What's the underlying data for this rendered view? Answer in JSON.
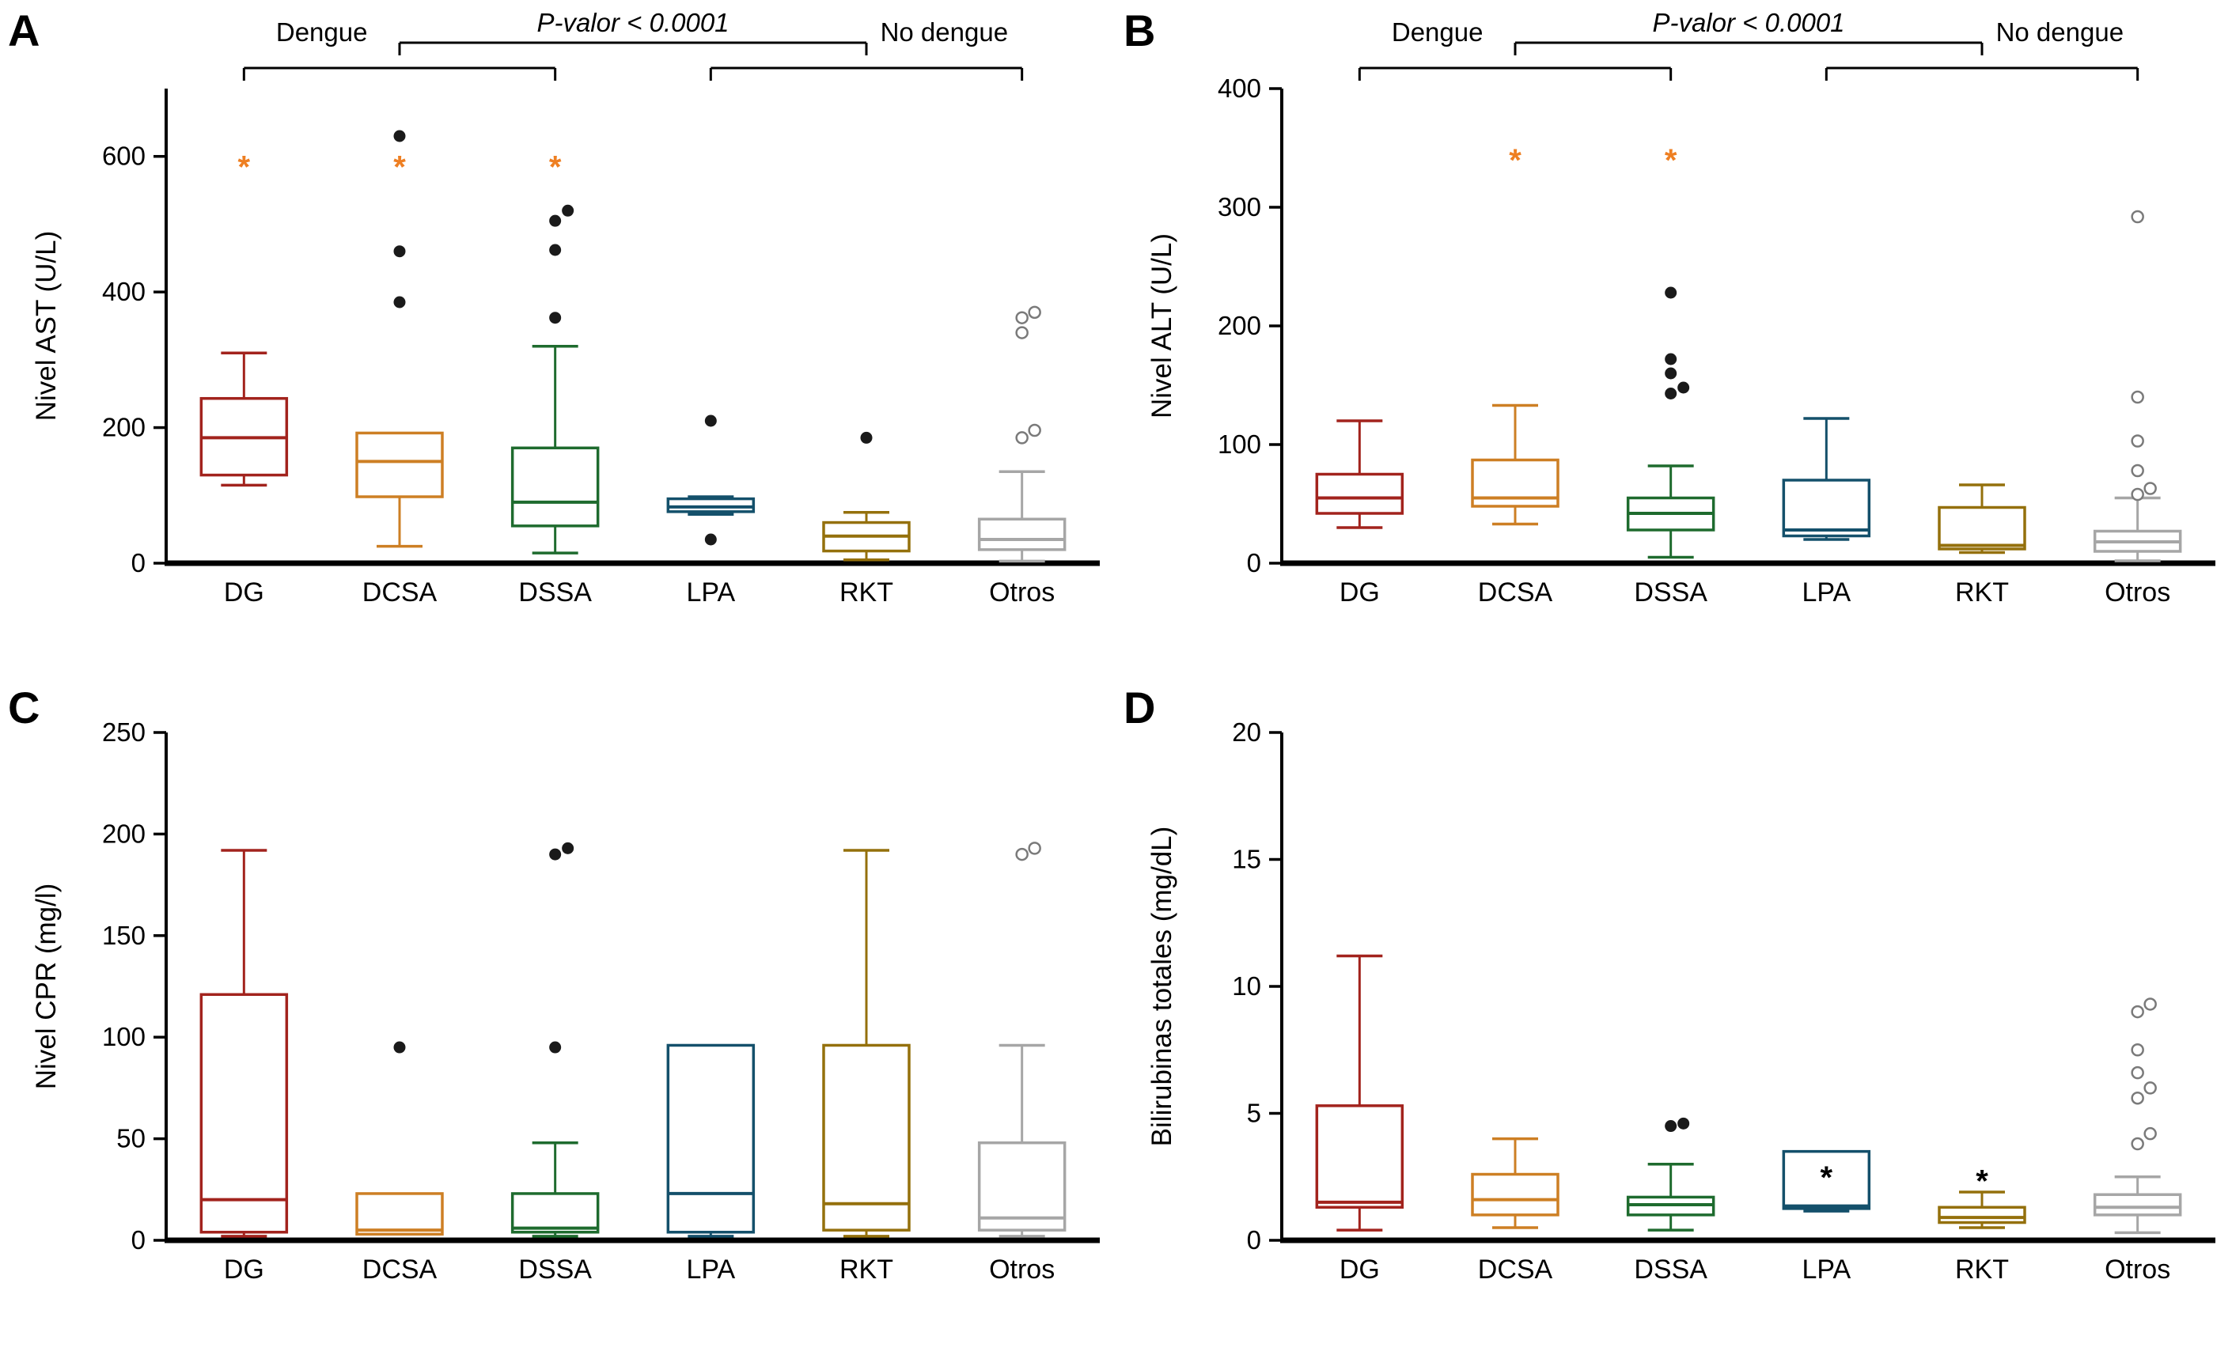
{
  "figure_title": "",
  "chart_data": [
    {
      "panel": "A",
      "type": "box",
      "ylabel": "Nivel AST (U/L)",
      "ylim": [
        0,
        700
      ],
      "yticks": [
        0,
        200,
        400,
        600
      ],
      "categories": [
        "DG",
        "DCSA",
        "DSSA",
        "LPA",
        "RKT",
        "Otros"
      ],
      "boxes": [
        {
          "label": "DG",
          "color": "#A2231D",
          "whislo": 115,
          "q1": 130,
          "med": 185,
          "q3": 243,
          "whishi": 310,
          "outliers": [],
          "marker": "filled"
        },
        {
          "label": "DCSA",
          "color": "#CD7F24",
          "whislo": 25,
          "q1": 98,
          "med": 150,
          "q3": 192,
          "whishi": 192,
          "outliers": [
            385,
            460,
            630
          ],
          "marker": "filled"
        },
        {
          "label": "DSSA",
          "color": "#1E6B2E",
          "whislo": 15,
          "q1": 55,
          "med": 90,
          "q3": 170,
          "whishi": 320,
          "outliers": [
            362,
            462,
            505,
            520
          ],
          "marker": "filled"
        },
        {
          "label": "LPA",
          "color": "#14506B",
          "whislo": 72,
          "q1": 76,
          "med": 83,
          "q3": 95,
          "whishi": 98,
          "outliers": [
            35,
            210
          ],
          "marker": "filled"
        },
        {
          "label": "RKT",
          "color": "#94700C",
          "whislo": 5,
          "q1": 18,
          "med": 40,
          "q3": 60,
          "whishi": 75,
          "outliers": [
            185
          ],
          "marker": "filled"
        },
        {
          "label": "Otros",
          "color": "#A6A6A6",
          "whislo": 3,
          "q1": 20,
          "med": 35,
          "q3": 65,
          "whishi": 135,
          "outliers": [
            185,
            196,
            340,
            362,
            370
          ],
          "marker": "open"
        }
      ],
      "asterisks": [
        {
          "category": "DG",
          "value": 585,
          "color": "#EE7F22"
        },
        {
          "category": "DCSA",
          "value": 585,
          "color": "#EE7F22"
        },
        {
          "category": "DSSA",
          "value": 585,
          "color": "#EE7F22"
        }
      ],
      "significance": {
        "p_label": "P-valor < 0.0001",
        "left_label": "Dengue",
        "right_label": "No dengue",
        "left_span": [
          "DG",
          "DSSA"
        ],
        "right_span": [
          "LPA",
          "Otros"
        ]
      }
    },
    {
      "panel": "B",
      "type": "box",
      "ylabel": "Nivel ALT (U/L)",
      "ylim": [
        0,
        400
      ],
      "yticks": [
        0,
        100,
        200,
        300,
        400
      ],
      "categories": [
        "DG",
        "DCSA",
        "DSSA",
        "LPA",
        "RKT",
        "Otros"
      ],
      "boxes": [
        {
          "label": "DG",
          "color": "#A2231D",
          "whislo": 30,
          "q1": 42,
          "med": 55,
          "q3": 75,
          "whishi": 120,
          "outliers": [],
          "marker": "filled"
        },
        {
          "label": "DCSA",
          "color": "#CD7F24",
          "whislo": 33,
          "q1": 48,
          "med": 55,
          "q3": 87,
          "whishi": 133,
          "outliers": [],
          "marker": "filled"
        },
        {
          "label": "DSSA",
          "color": "#1E6B2E",
          "whislo": 5,
          "q1": 28,
          "med": 42,
          "q3": 55,
          "whishi": 82,
          "outliers": [
            143,
            148,
            160,
            172,
            228
          ],
          "marker": "filled"
        },
        {
          "label": "LPA",
          "color": "#14506B",
          "whislo": 20,
          "q1": 23,
          "med": 28,
          "q3": 70,
          "whishi": 122,
          "outliers": [],
          "marker": "filled"
        },
        {
          "label": "RKT",
          "color": "#94700C",
          "whislo": 9,
          "q1": 12,
          "med": 15,
          "q3": 47,
          "whishi": 66,
          "outliers": [],
          "marker": "filled"
        },
        {
          "label": "Otros",
          "color": "#A6A6A6",
          "whislo": 2,
          "q1": 10,
          "med": 18,
          "q3": 27,
          "whishi": 55,
          "outliers": [
            58,
            63,
            78,
            103,
            140,
            292
          ],
          "marker": "open"
        }
      ],
      "asterisks": [
        {
          "category": "DCSA",
          "value": 340,
          "color": "#EE7F22"
        },
        {
          "category": "DSSA",
          "value": 340,
          "color": "#EE7F22"
        }
      ],
      "significance": {
        "p_label": "P-valor < 0.0001",
        "left_label": "Dengue",
        "right_label": "No dengue",
        "left_span": [
          "DG",
          "DSSA"
        ],
        "right_span": [
          "LPA",
          "Otros"
        ]
      }
    },
    {
      "panel": "C",
      "type": "box",
      "ylabel": "Nivel CPR (mg/l)",
      "ylim": [
        0,
        250
      ],
      "yticks": [
        0,
        50,
        100,
        150,
        200,
        250
      ],
      "categories": [
        "DG",
        "DCSA",
        "DSSA",
        "LPA",
        "RKT",
        "Otros"
      ],
      "boxes": [
        {
          "label": "DG",
          "color": "#A2231D",
          "whislo": 2,
          "q1": 4,
          "med": 20,
          "q3": 121,
          "whishi": 192,
          "outliers": [],
          "marker": "filled"
        },
        {
          "label": "DCSA",
          "color": "#CD7F24",
          "whislo": 2,
          "q1": 3,
          "med": 5,
          "q3": 23,
          "whishi": 23,
          "outliers": [
            95
          ],
          "marker": "filled"
        },
        {
          "label": "DSSA",
          "color": "#1E6B2E",
          "whislo": 2,
          "q1": 4,
          "med": 6,
          "q3": 23,
          "whishi": 48,
          "outliers": [
            95,
            190,
            193
          ],
          "marker": "filled"
        },
        {
          "label": "LPA",
          "color": "#14506B",
          "whislo": 2,
          "q1": 4,
          "med": 23,
          "q3": 96,
          "whishi": 96,
          "outliers": [],
          "marker": "filled"
        },
        {
          "label": "RKT",
          "color": "#94700C",
          "whislo": 2,
          "q1": 5,
          "med": 18,
          "q3": 96,
          "whishi": 192,
          "outliers": [],
          "marker": "filled"
        },
        {
          "label": "Otros",
          "color": "#A6A6A6",
          "whislo": 2,
          "q1": 5,
          "med": 11,
          "q3": 48,
          "whishi": 96,
          "outliers": [
            190,
            193
          ],
          "marker": "open"
        }
      ],
      "asterisks": [],
      "significance": null
    },
    {
      "panel": "D",
      "type": "box",
      "ylabel": "Bilirubinas totales (mg/dL)",
      "ylim": [
        0,
        20
      ],
      "yticks": [
        0,
        5,
        10,
        15,
        20
      ],
      "categories": [
        "DG",
        "DCSA",
        "DSSA",
        "LPA",
        "RKT",
        "Otros"
      ],
      "boxes": [
        {
          "label": "DG",
          "color": "#A2231D",
          "whislo": 0.4,
          "q1": 1.3,
          "med": 1.5,
          "q3": 5.3,
          "whishi": 11.2,
          "outliers": [],
          "marker": "filled"
        },
        {
          "label": "DCSA",
          "color": "#CD7F24",
          "whislo": 0.5,
          "q1": 1.0,
          "med": 1.6,
          "q3": 2.6,
          "whishi": 4.0,
          "outliers": [],
          "marker": "filled"
        },
        {
          "label": "DSSA",
          "color": "#1E6B2E",
          "whislo": 0.4,
          "q1": 1.0,
          "med": 1.4,
          "q3": 1.7,
          "whishi": 3.0,
          "outliers": [
            4.5,
            4.6
          ],
          "marker": "filled"
        },
        {
          "label": "LPA",
          "color": "#14506B",
          "whislo": 1.15,
          "q1": 1.25,
          "med": 1.35,
          "q3": 3.5,
          "whishi": 3.5,
          "outliers": [],
          "marker": "filled"
        },
        {
          "label": "RKT",
          "color": "#94700C",
          "whislo": 0.5,
          "q1": 0.7,
          "med": 0.9,
          "q3": 1.3,
          "whishi": 1.9,
          "outliers": [],
          "marker": "filled"
        },
        {
          "label": "Otros",
          "color": "#A6A6A6",
          "whislo": 0.3,
          "q1": 1.0,
          "med": 1.3,
          "q3": 1.8,
          "whishi": 2.5,
          "outliers": [
            3.8,
            4.2,
            5.6,
            6.0,
            6.6,
            7.5,
            9.0,
            9.3
          ],
          "marker": "open"
        }
      ],
      "asterisks": [
        {
          "category": "LPA",
          "value": 2.5,
          "color": "#000000"
        },
        {
          "category": "RKT",
          "value": 2.35,
          "color": "#000000"
        }
      ],
      "significance": null
    }
  ],
  "style": {
    "axis_color": "#000000",
    "asterisk_color": "#EE7F22",
    "outlier_filled_color": "#1a1a1a",
    "outlier_open_color": "#7a7a7a",
    "background": "#ffffff"
  }
}
